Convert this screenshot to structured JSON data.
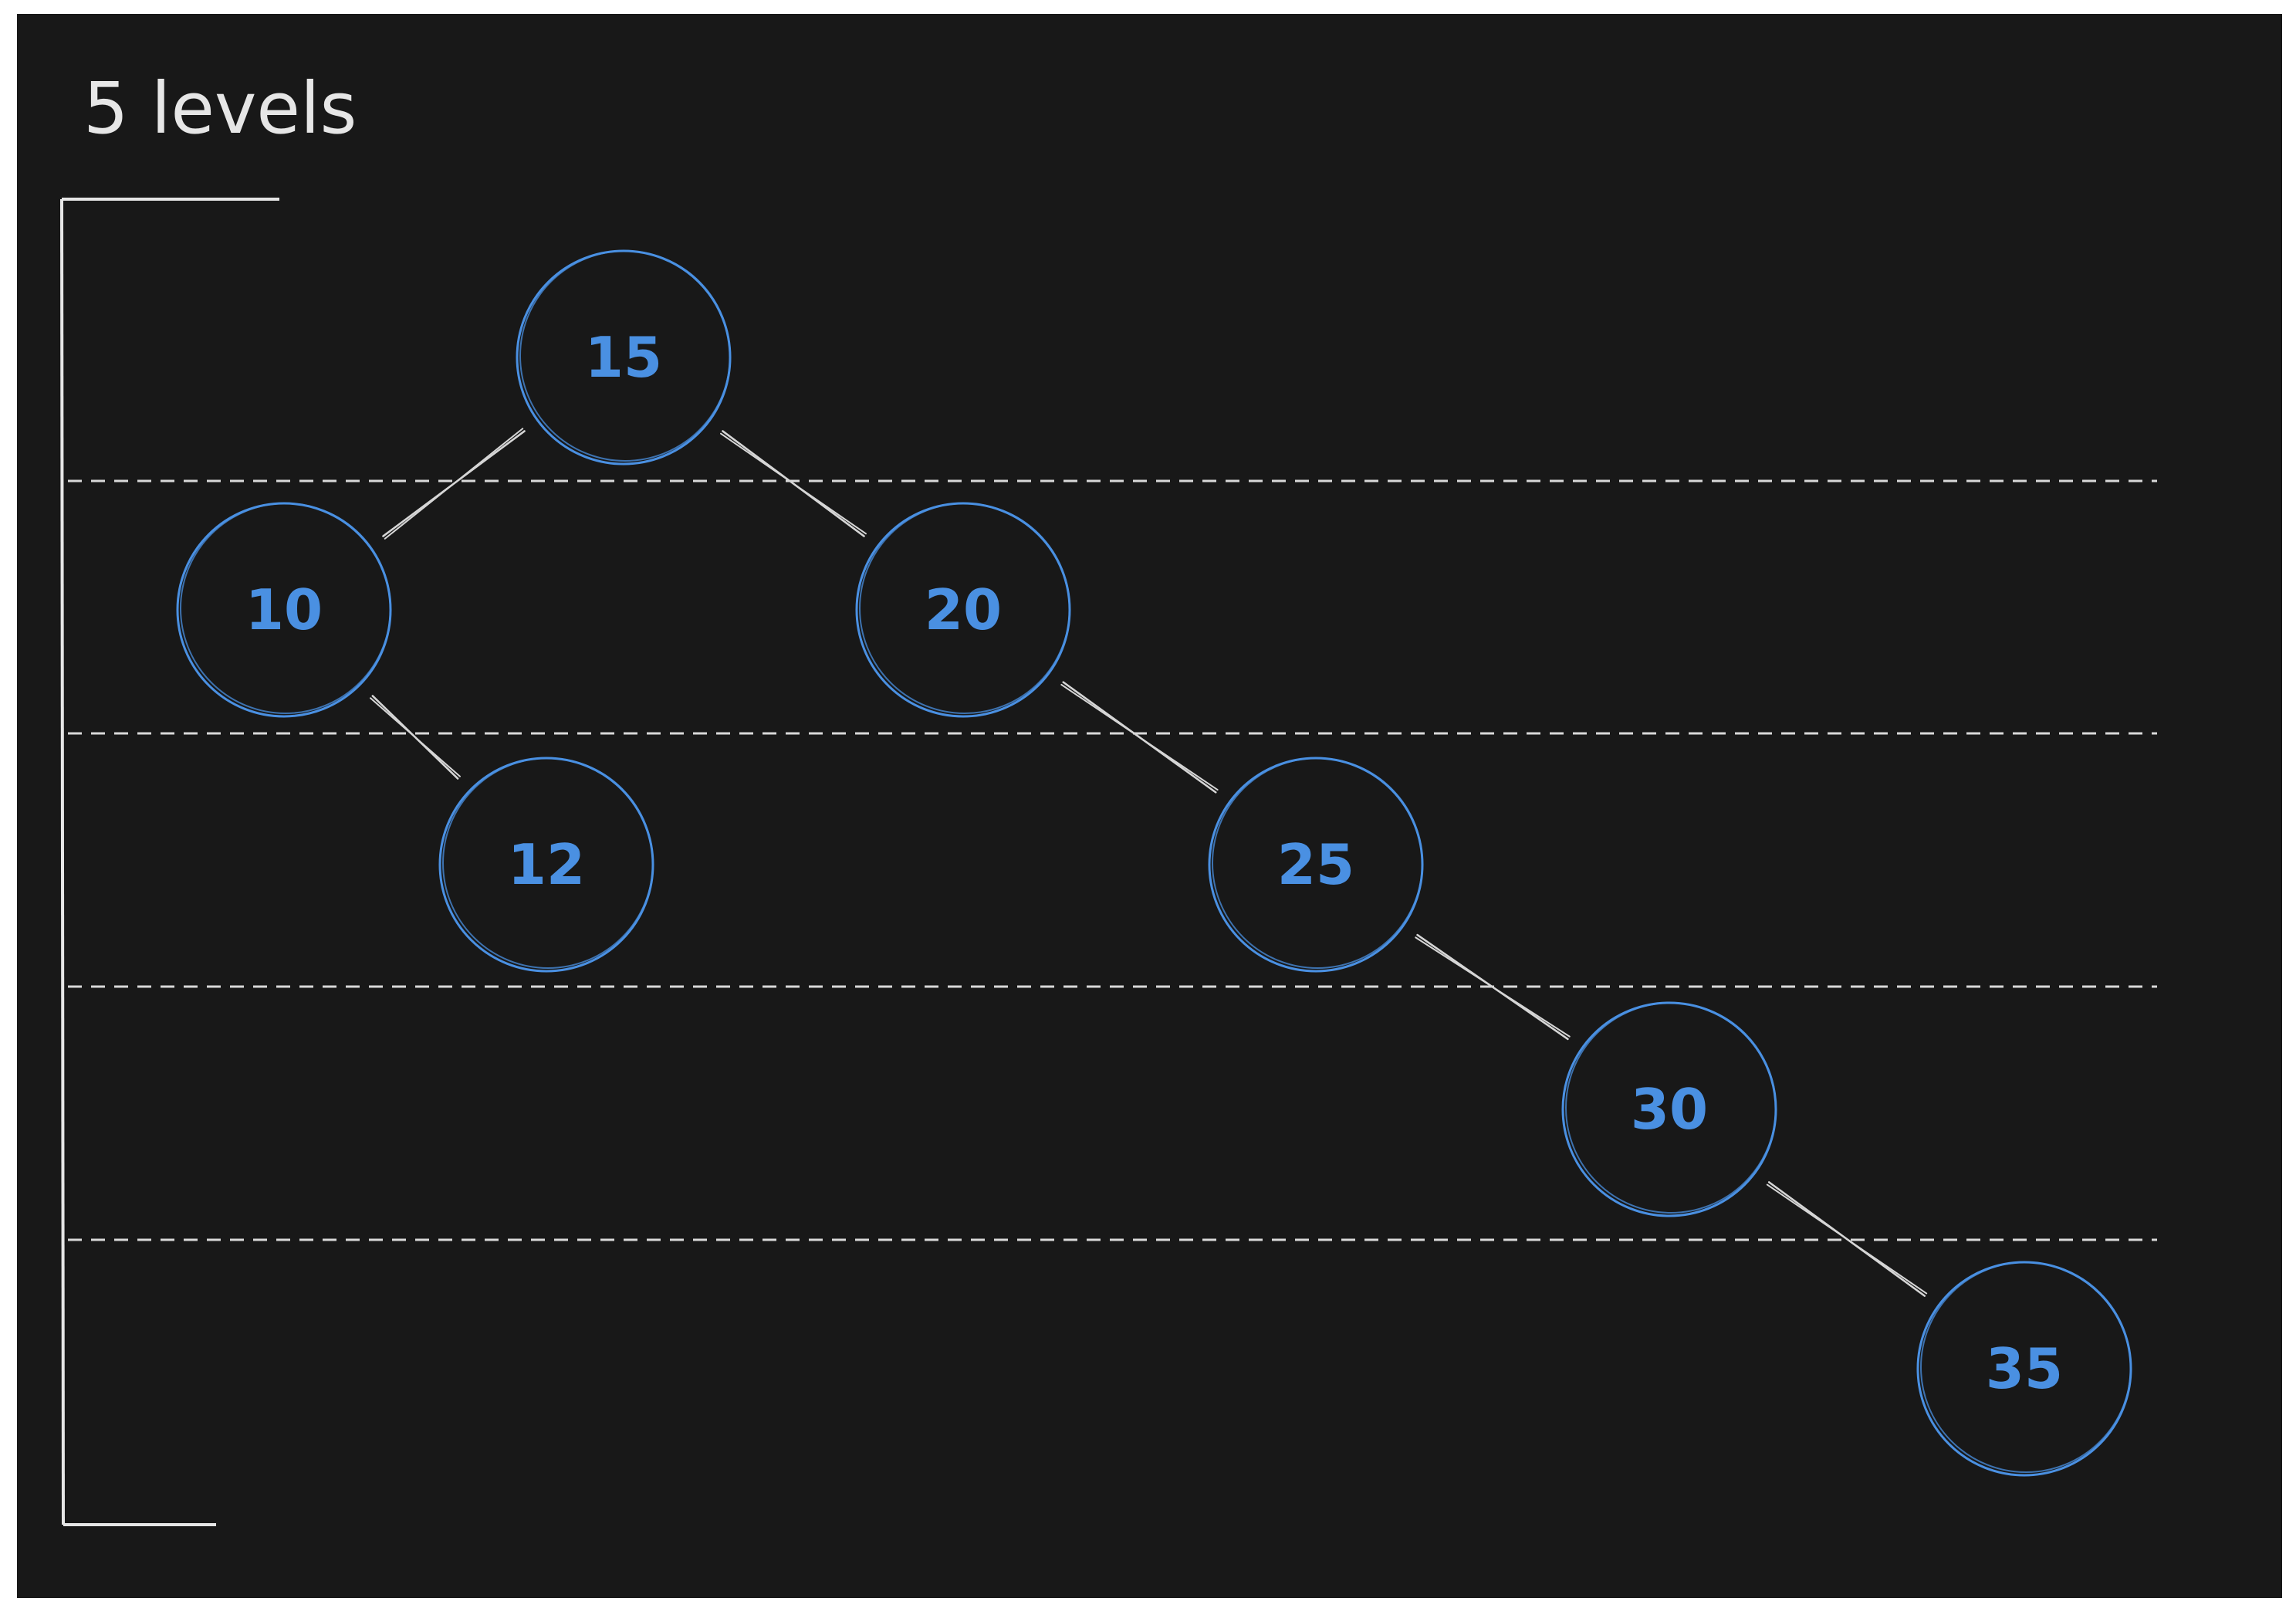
{
  "diagram": {
    "title": "5 levels",
    "colors": {
      "background": "#181818",
      "node_stroke": "#4a90e2",
      "node_text": "#4a90e2",
      "edge": "#d6d6d6",
      "divider": "#d9d9d9",
      "bracket": "#e6e6e6",
      "title": "#e6e6e6"
    },
    "levels": 5,
    "nodes": [
      {
        "id": "n15",
        "label": "15",
        "level": 1
      },
      {
        "id": "n10",
        "label": "10",
        "level": 2
      },
      {
        "id": "n20",
        "label": "20",
        "level": 2
      },
      {
        "id": "n12",
        "label": "12",
        "level": 3
      },
      {
        "id": "n25",
        "label": "25",
        "level": 3
      },
      {
        "id": "n30",
        "label": "30",
        "level": 4
      },
      {
        "id": "n35",
        "label": "35",
        "level": 5
      }
    ],
    "edges": [
      {
        "from": "n15",
        "to": "n10"
      },
      {
        "from": "n15",
        "to": "n20"
      },
      {
        "from": "n10",
        "to": "n12"
      },
      {
        "from": "n20",
        "to": "n25"
      },
      {
        "from": "n25",
        "to": "n30"
      },
      {
        "from": "n30",
        "to": "n35"
      }
    ]
  }
}
